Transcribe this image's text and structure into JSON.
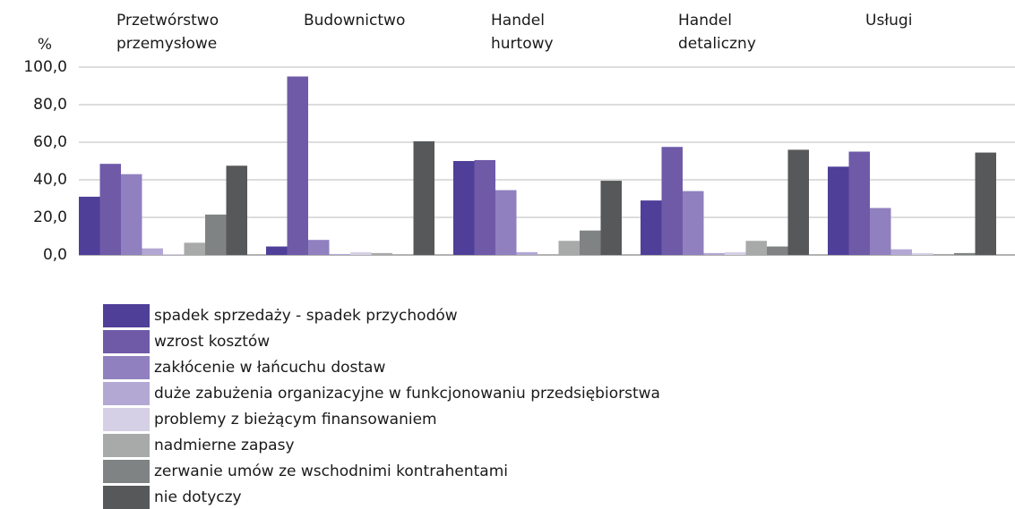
{
  "chart_data": {
    "type": "bar",
    "y_label": "%",
    "categories": [
      "Przetwórstwo\nprzemysłowe",
      "Budownictwo",
      "Handel\nhurtowy",
      "Handel\ndetaliczny",
      "Usługi"
    ],
    "ylim": [
      0,
      100
    ],
    "yticks": [
      {
        "value": 0,
        "label": "0,0"
      },
      {
        "value": 20,
        "label": "20,0"
      },
      {
        "value": 40,
        "label": "40,0"
      },
      {
        "value": 60,
        "label": "60,0"
      },
      {
        "value": 80,
        "label": "80,0"
      },
      {
        "value": 100,
        "label": "100,0"
      }
    ],
    "grid": true,
    "series": [
      {
        "name": "spadek sprzedaży - spadek przychodów",
        "color": "#4f3f99",
        "values": [
          31,
          4.5,
          50,
          29,
          47
        ]
      },
      {
        "name": "wzrost kosztów",
        "color": "#6f5aa8",
        "values": [
          48.5,
          95,
          50.5,
          57.5,
          55
        ]
      },
      {
        "name": "zakłócenie w łańcuchu dostaw",
        "color": "#9080bf",
        "values": [
          43,
          8,
          34.5,
          34,
          25
        ]
      },
      {
        "name": "duże zabużenia organizacyjne w funkcjonowaniu przedsiębiorstwa",
        "color": "#b3a8d4",
        "values": [
          3.5,
          0.5,
          1.5,
          1,
          3
        ]
      },
      {
        "name": "problemy z bieżącym finansowaniem",
        "color": "#d6d0e6",
        "values": [
          0.5,
          1.5,
          0,
          1.5,
          1
        ]
      },
      {
        "name": "nadmierne zapasy",
        "color": "#a8a9a9",
        "values": [
          6.5,
          1,
          7.5,
          7.5,
          0.5
        ]
      },
      {
        "name": "zerwanie umów ze wschodnimi kontrahentami",
        "color": "#808384",
        "values": [
          21.5,
          0,
          13,
          4.5,
          1
        ]
      },
      {
        "name": "nie dotyczy",
        "color": "#575859",
        "values": [
          47.5,
          60.5,
          39.5,
          56,
          54.5
        ]
      }
    ]
  }
}
